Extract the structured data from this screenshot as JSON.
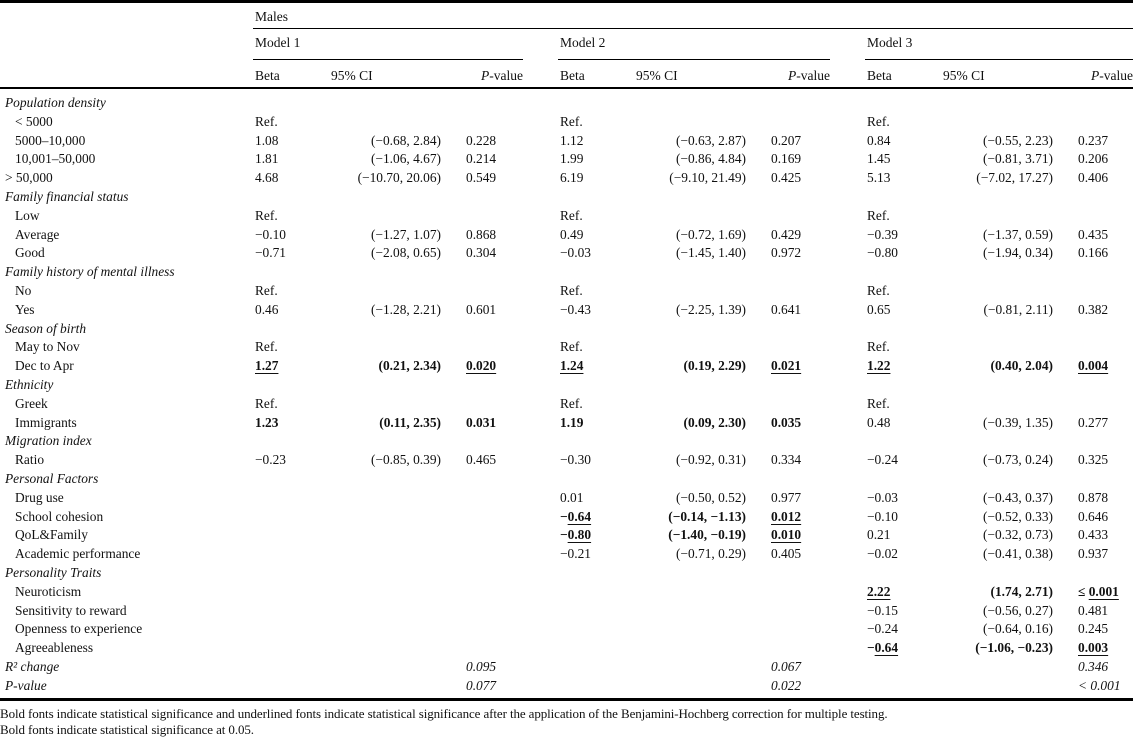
{
  "table": {
    "header": {
      "group": "Males",
      "models": [
        "Model 1",
        "Model 2",
        "Model 3"
      ],
      "columns": {
        "beta": "Beta",
        "ci": "95% CI",
        "p_italic": "P",
        "p_rest": "-value"
      }
    },
    "rows": [
      {
        "label": "Population density",
        "it": true,
        "ind": 0,
        "cells": null
      },
      {
        "label": "< 5000",
        "ind": 1,
        "cells": [
          {
            "t": "Ref."
          },
          null,
          null,
          {
            "t": "Ref."
          },
          null,
          null,
          {
            "t": "Ref."
          },
          null,
          null
        ]
      },
      {
        "label": "5000–10,000",
        "ind": 1,
        "cells": [
          {
            "t": "1.08"
          },
          {
            "t": "(−0.68, 2.84)"
          },
          {
            "t": "0.228"
          },
          {
            "t": "1.12"
          },
          {
            "t": "(−0.63, 2.87)"
          },
          {
            "t": "0.207"
          },
          {
            "t": "0.84"
          },
          {
            "t": "(−0.55, 2.23)"
          },
          {
            "t": "0.237"
          }
        ]
      },
      {
        "label": "10,001–50,000",
        "ind": 1,
        "cells": [
          {
            "t": "1.81"
          },
          {
            "t": "(−1.06, 4.67)"
          },
          {
            "t": "0.214"
          },
          {
            "t": "1.99"
          },
          {
            "t": "(−0.86, 4.84)"
          },
          {
            "t": "0.169"
          },
          {
            "t": "1.45"
          },
          {
            "t": "(−0.81, 3.71)"
          },
          {
            "t": "0.206"
          }
        ]
      },
      {
        "label": "> 50,000",
        "ind": 0,
        "cells": [
          {
            "t": "4.68"
          },
          {
            "t": "(−10.70, 20.06)"
          },
          {
            "t": "0.549"
          },
          {
            "t": "6.19"
          },
          {
            "t": "(−9.10, 21.49)"
          },
          {
            "t": "0.425"
          },
          {
            "t": "5.13"
          },
          {
            "t": "(−7.02, 17.27)"
          },
          {
            "t": "0.406"
          }
        ]
      },
      {
        "label": "Family financial status",
        "it": true,
        "ind": 0,
        "cells": null
      },
      {
        "label": "Low",
        "ind": 1,
        "cells": [
          {
            "t": "Ref."
          },
          null,
          null,
          {
            "t": "Ref."
          },
          null,
          null,
          {
            "t": "Ref."
          },
          null,
          null
        ]
      },
      {
        "label": "Average",
        "ind": 1,
        "cells": [
          {
            "t": "−0.10"
          },
          {
            "t": "(−1.27, 1.07)"
          },
          {
            "t": "0.868"
          },
          {
            "t": "0.49"
          },
          {
            "t": "(−0.72, 1.69)"
          },
          {
            "t": "0.429"
          },
          {
            "t": "−0.39"
          },
          {
            "t": "(−1.37, 0.59)"
          },
          {
            "t": "0.435"
          }
        ]
      },
      {
        "label": "Good",
        "ind": 1,
        "cells": [
          {
            "t": "−0.71"
          },
          {
            "t": "(−2.08, 0.65)"
          },
          {
            "t": "0.304"
          },
          {
            "t": "−0.03"
          },
          {
            "t": "(−1.45, 1.40)"
          },
          {
            "t": "0.972"
          },
          {
            "t": "−0.80"
          },
          {
            "t": "(−1.94, 0.34)"
          },
          {
            "t": "0.166"
          }
        ]
      },
      {
        "label": "Family history of mental illness",
        "it": true,
        "ind": 0,
        "cells": null
      },
      {
        "label": "No",
        "ind": 1,
        "cells": [
          {
            "t": "Ref."
          },
          null,
          null,
          {
            "t": "Ref."
          },
          null,
          null,
          {
            "t": "Ref."
          },
          null,
          null
        ]
      },
      {
        "label": "Yes",
        "ind": 1,
        "cells": [
          {
            "t": "0.46"
          },
          {
            "t": "(−1.28, 2.21)"
          },
          {
            "t": "0.601"
          },
          {
            "t": "−0.43"
          },
          {
            "t": "(−2.25, 1.39)"
          },
          {
            "t": "0.641"
          },
          {
            "t": "0.65"
          },
          {
            "t": "(−0.81, 2.11)"
          },
          {
            "t": "0.382"
          }
        ]
      },
      {
        "label": "Season of birth",
        "it": true,
        "ind": 0,
        "cells": null
      },
      {
        "label": "May to Nov",
        "ind": 1,
        "cells": [
          {
            "t": "Ref."
          },
          null,
          null,
          {
            "t": "Ref."
          },
          null,
          null,
          {
            "t": "Ref."
          },
          null,
          null
        ]
      },
      {
        "label": "Dec to Apr",
        "ind": 1,
        "cells": [
          {
            "t": "1.27",
            "b": true,
            "u": true
          },
          {
            "t": "(0.21, 2.34)",
            "b": true
          },
          {
            "t": "0.020",
            "b": true,
            "u": true
          },
          {
            "t": "1.24",
            "b": true,
            "u": true
          },
          {
            "t": "(0.19, 2.29)",
            "b": true
          },
          {
            "t": "0.021",
            "b": true,
            "u": true
          },
          {
            "t": "1.22",
            "b": true,
            "u": true
          },
          {
            "t": "(0.40, 2.04)",
            "b": true
          },
          {
            "t": "0.004",
            "b": true,
            "u": true
          }
        ]
      },
      {
        "label": "Ethnicity",
        "it": true,
        "ind": 0,
        "cells": null
      },
      {
        "label": "Greek",
        "ind": 1,
        "cells": [
          {
            "t": "Ref."
          },
          null,
          null,
          {
            "t": "Ref."
          },
          null,
          null,
          {
            "t": "Ref."
          },
          null,
          null
        ]
      },
      {
        "label": "Immigrants",
        "ind": 1,
        "cells": [
          {
            "t": "1.23",
            "b": true
          },
          {
            "t": "(0.11, 2.35)",
            "b": true
          },
          {
            "t": "0.031",
            "b": true
          },
          {
            "t": "1.19",
            "b": true
          },
          {
            "t": "(0.09, 2.30)",
            "b": true
          },
          {
            "t": "0.035",
            "b": true
          },
          {
            "t": "0.48"
          },
          {
            "t": "(−0.39, 1.35)"
          },
          {
            "t": "0.277"
          }
        ]
      },
      {
        "label": "Migration index",
        "it": true,
        "ind": 0,
        "cells": null
      },
      {
        "label": "Ratio",
        "ind": 1,
        "cells": [
          {
            "t": "−0.23"
          },
          {
            "t": "(−0.85, 0.39)"
          },
          {
            "t": "0.465"
          },
          {
            "t": "−0.30"
          },
          {
            "t": "(−0.92, 0.31)"
          },
          {
            "t": "0.334"
          },
          {
            "t": "−0.24"
          },
          {
            "t": "(−0.73, 0.24)"
          },
          {
            "t": "0.325"
          }
        ]
      },
      {
        "label": "Personal Factors",
        "it": true,
        "ind": 0,
        "cells": null
      },
      {
        "label": "Drug use",
        "ind": 1,
        "cells": [
          null,
          null,
          null,
          {
            "t": "0.01"
          },
          {
            "t": "(−0.50, 0.52)"
          },
          {
            "t": "0.977"
          },
          {
            "t": "−0.03"
          },
          {
            "t": "(−0.43, 0.37)"
          },
          {
            "t": "0.878"
          }
        ]
      },
      {
        "label": "School cohesion",
        "ind": 1,
        "cells": [
          null,
          null,
          null,
          {
            "pre": "−",
            "t": "0.64",
            "b": true,
            "u": true
          },
          {
            "t": "(−0.14, −1.13)",
            "b": true
          },
          {
            "t": "0.012",
            "b": true,
            "u": true
          },
          {
            "t": "−0.10"
          },
          {
            "t": "(−0.52, 0.33)"
          },
          {
            "t": "0.646"
          }
        ]
      },
      {
        "label": "QoL&Family",
        "ind": 1,
        "cells": [
          null,
          null,
          null,
          {
            "pre": "−",
            "t": "0.80",
            "b": true,
            "u": true
          },
          {
            "t": "(−1.40, −0.19)",
            "b": true
          },
          {
            "t": "0.010",
            "b": true,
            "u": true
          },
          {
            "t": "0.21"
          },
          {
            "t": "(−0.32, 0.73)"
          },
          {
            "t": "0.433"
          }
        ]
      },
      {
        "label": "Academic performance",
        "ind": 1,
        "cells": [
          null,
          null,
          null,
          {
            "t": "−0.21"
          },
          {
            "t": "(−0.71, 0.29)"
          },
          {
            "t": "0.405"
          },
          {
            "t": "−0.02"
          },
          {
            "t": "(−0.41, 0.38)"
          },
          {
            "t": "0.937"
          }
        ]
      },
      {
        "label": "Personality Traits",
        "it": true,
        "ind": 0,
        "cells": null
      },
      {
        "label": "Neuroticism",
        "ind": 1,
        "cells": [
          null,
          null,
          null,
          null,
          null,
          null,
          {
            "t": "2.22",
            "b": true,
            "u": true
          },
          {
            "t": "(1.74, 2.71)",
            "b": true
          },
          {
            "pre": "≤ ",
            "t": "0.001",
            "b": true,
            "u": true
          }
        ]
      },
      {
        "label": "Sensitivity to reward",
        "ind": 1,
        "cells": [
          null,
          null,
          null,
          null,
          null,
          null,
          {
            "t": "−0.15"
          },
          {
            "t": "(−0.56, 0.27)"
          },
          {
            "t": "0.481"
          }
        ]
      },
      {
        "label": "Openness to experience",
        "ind": 1,
        "cells": [
          null,
          null,
          null,
          null,
          null,
          null,
          {
            "t": "−0.24"
          },
          {
            "t": "(−0.64, 0.16)"
          },
          {
            "t": "0.245"
          }
        ]
      },
      {
        "label": "Agreeableness",
        "ind": 1,
        "cells": [
          null,
          null,
          null,
          null,
          null,
          null,
          {
            "pre": "−",
            "t": "0.64",
            "b": true,
            "u": true
          },
          {
            "t": "(−1.06, −0.23)",
            "b": true
          },
          {
            "t": "0.003",
            "b": true,
            "u": true
          }
        ]
      },
      {
        "label": "R² change",
        "it": true,
        "ind": 0,
        "cells": [
          null,
          null,
          {
            "t": "0.095",
            "i": true
          },
          null,
          null,
          {
            "t": "0.067",
            "i": true
          },
          null,
          null,
          {
            "t": "0.346",
            "i": true
          }
        ]
      },
      {
        "label": "P-value",
        "it": true,
        "ind": 0,
        "cells": [
          null,
          null,
          {
            "t": "0.077",
            "i": true
          },
          null,
          null,
          {
            "t": "0.022",
            "i": true
          },
          null,
          null,
          {
            "t": "< 0.001",
            "i": true
          }
        ]
      }
    ]
  },
  "footnotes": [
    "Bold fonts indicate statistical significance and underlined fonts indicate statistical significance after the application of the Benjamini-Hochberg correction for multiple testing.",
    "Bold fonts indicate statistical significance at 0.05."
  ]
}
